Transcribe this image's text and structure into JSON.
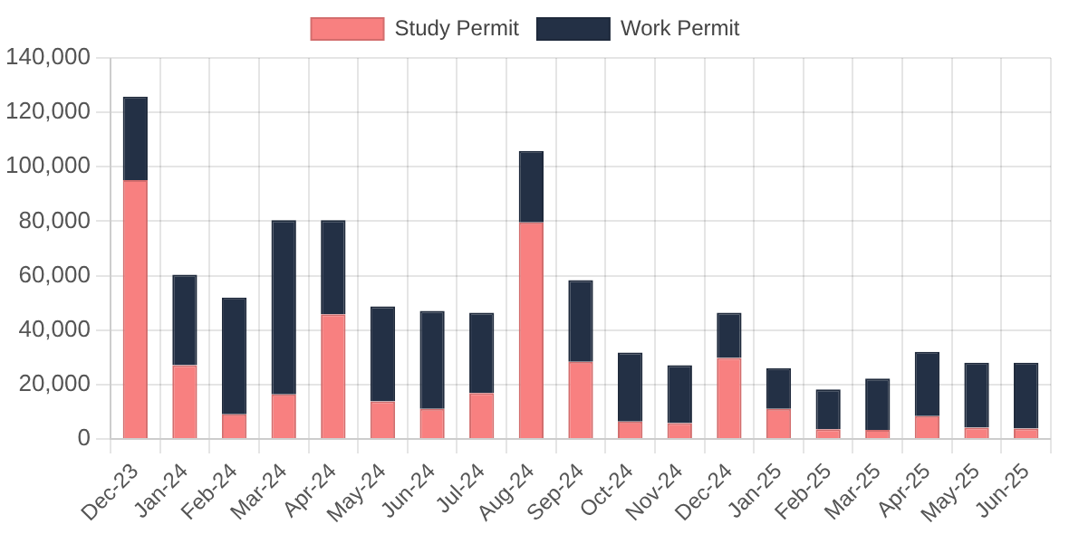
{
  "chart_data": {
    "type": "bar",
    "stacked": true,
    "legend": "top",
    "grid": true,
    "categories": [
      "Dec-23",
      "Jan-24",
      "Feb-24",
      "Mar-24",
      "Apr-24",
      "May-24",
      "Jun-24",
      "Jul-24",
      "Aug-24",
      "Sep-24",
      "Oct-24",
      "Nov-24",
      "Dec-24",
      "Jan-25",
      "Feb-25",
      "Mar-25",
      "Apr-25",
      "May-25",
      "Jun-25"
    ],
    "series": [
      {
        "name": "Study Permit",
        "color": "#f88080",
        "values": [
          95100,
          27100,
          9100,
          16400,
          45800,
          13800,
          11100,
          16900,
          79600,
          28400,
          6400,
          5800,
          29800,
          11100,
          3600,
          3300,
          8400,
          4200,
          3800
        ]
      },
      {
        "name": "Work Permit",
        "color": "#233045",
        "values": [
          30700,
          33300,
          42900,
          64000,
          34600,
          34900,
          36000,
          29500,
          26200,
          30000,
          25400,
          21300,
          16600,
          14900,
          14600,
          18900,
          23600,
          23800,
          24200
        ]
      }
    ],
    "ylim": [
      0,
      140000
    ],
    "yticks": [
      0,
      {
        "value": 20000,
        "label": "20,000"
      },
      {
        "value": 40000,
        "label": "40,000"
      },
      {
        "value": 60000,
        "label": "60,000"
      },
      {
        "value": 80000,
        "label": "80,000"
      },
      {
        "value": 100000,
        "label": "100,000"
      },
      {
        "value": 120000,
        "label": "120,000"
      },
      {
        "value": 140000,
        "label": "140,000"
      }
    ]
  }
}
